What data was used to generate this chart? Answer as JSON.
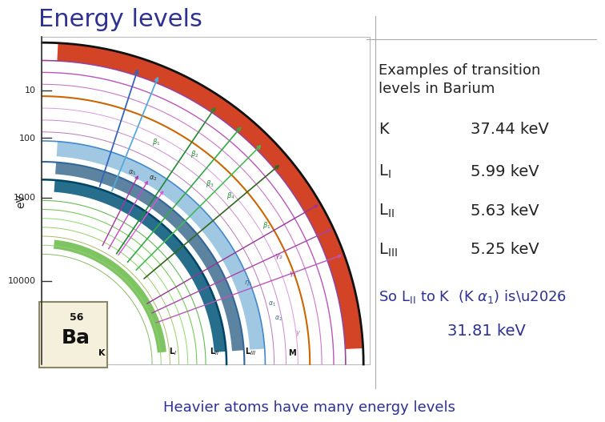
{
  "title": "Energy levels",
  "title_color": "#2e3192",
  "title_fontsize": 22,
  "subtitle": "Examples of transition\nlevels in Barium",
  "subtitle_fontsize": 13,
  "bg_color": "#ffffff",
  "border_color": "#aaaaaa",
  "text_color": "#222222",
  "blue_color": "#2e3192",
  "levels": [
    {
      "label": "K",
      "energy": "37.44 keV"
    },
    {
      "label": "L_I",
      "energy": "5.99 keV"
    },
    {
      "label": "L_II",
      "energy": "5.63 keV"
    },
    {
      "label": "L_III",
      "energy": "5.25 keV"
    }
  ],
  "result": "31.81 keV",
  "footer": "Heavier atoms have many energy levels",
  "footer_color": "#2e3192",
  "footer_fontsize": 13,
  "yticks": [
    "10",
    "100",
    "1000",
    "10000"
  ]
}
